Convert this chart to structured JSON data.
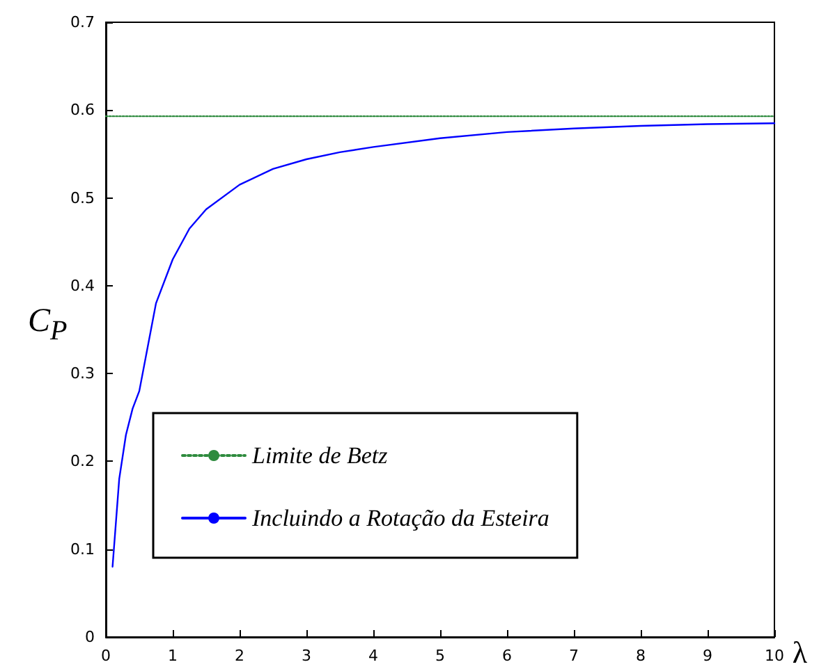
{
  "chart_data": {
    "type": "line",
    "xlabel": "λ",
    "ylabel": "C$_{P}$",
    "xlim": [
      0,
      10
    ],
    "xticks": [
      0,
      1,
      2,
      3,
      4,
      5,
      6,
      7,
      8,
      9,
      10
    ],
    "ylim": [
      0,
      0.7
    ],
    "yticks": [
      0,
      0.1,
      0.2,
      0.3,
      0.4,
      0.5,
      0.6,
      0.7
    ],
    "grid": false,
    "legend": "bottom left",
    "marker": "none",
    "series": [
      {
        "name": "Limite de Betz",
        "color": "#2e8b3e",
        "line_style": "dotted",
        "x": [
          0,
          10
        ],
        "values": [
          0.593,
          0.593
        ]
      },
      {
        "name": "Incluindo a Rotação da Esteira",
        "color": "#0000ff",
        "line_style": "solid",
        "x": [
          0.1,
          0.2,
          0.3,
          0.4,
          0.5,
          0.6,
          0.75,
          1,
          1.25,
          1.5,
          2,
          2.5,
          3,
          3.5,
          4,
          5,
          6,
          7,
          8,
          9,
          10
        ],
        "values": [
          0.08,
          0.18,
          0.23,
          0.26,
          0.28,
          0.32,
          0.38,
          0.43,
          0.465,
          0.487,
          0.515,
          0.533,
          0.544,
          0.552,
          0.558,
          0.568,
          0.575,
          0.579,
          0.582,
          0.584,
          0.585
        ]
      }
    ]
  }
}
